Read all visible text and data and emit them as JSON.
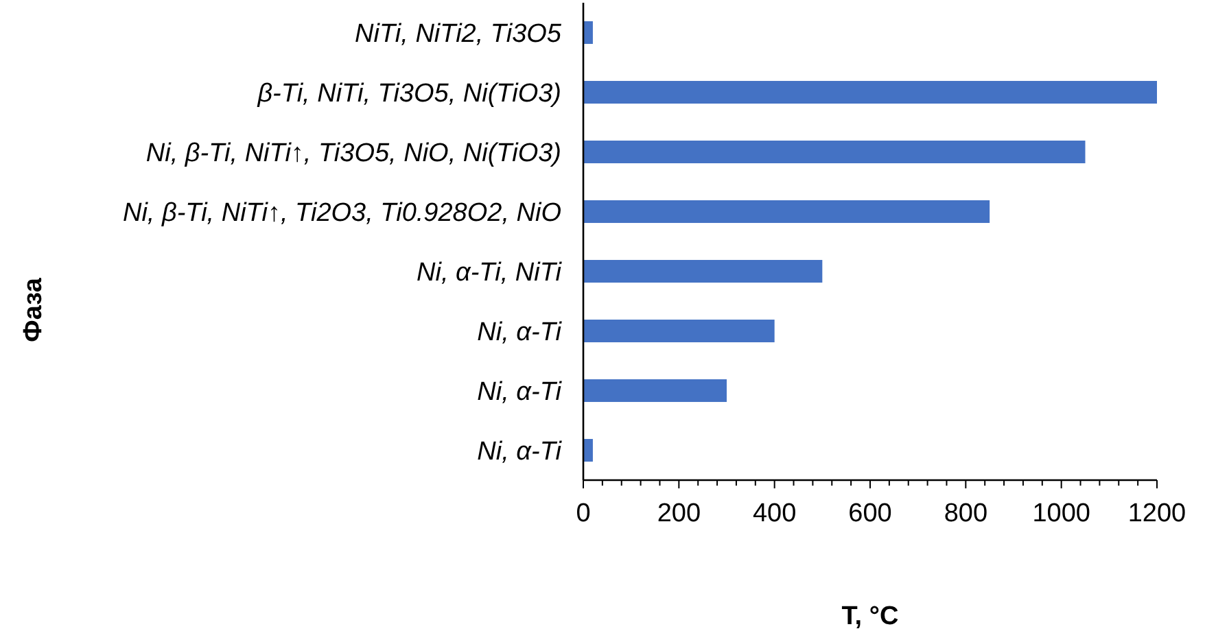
{
  "chart_data": {
    "type": "bar",
    "orientation": "horizontal",
    "xlabel": "T, °C",
    "ylabel": "Фаза",
    "categories": [
      "NiTi, NiTi2, Ti3O5",
      "β-Ti, NiTi, Ti3O5, Ni(TiO3)",
      "Ni, β-Ti, NiTi↑, Ti3O5, NiO, Ni(TiO3)",
      "Ni, β-Ti, NiTi↑, Ti2O3, Ti0.928O2, NiO",
      "Ni, α-Ti, NiTi",
      "Ni, α-Ti",
      "Ni, α-Ti",
      "Ni, α-Ti"
    ],
    "values": [
      20,
      1200,
      1050,
      850,
      500,
      400,
      300,
      20
    ],
    "color": "#4472c4",
    "xlim": [
      0,
      1200
    ],
    "xticks": [
      0,
      {
        "value": 40,
        "label": null
      },
      {
        "value": 80,
        "label": null
      },
      {
        "value": 120,
        "label": null
      },
      {
        "value": 160,
        "label": null
      },
      200,
      {
        "value": 240,
        "label": null
      },
      {
        "value": 280,
        "label": null
      },
      {
        "value": 320,
        "label": null
      },
      {
        "value": 360,
        "label": null
      },
      400,
      {
        "value": 440,
        "label": null
      },
      {
        "value": 480,
        "label": null
      },
      {
        "value": 520,
        "label": null
      },
      {
        "value": 560,
        "label": null
      },
      600,
      {
        "value": 640,
        "label": null
      },
      {
        "value": 680,
        "label": null
      },
      {
        "value": 720,
        "label": null
      },
      {
        "value": 760,
        "label": null
      },
      800,
      {
        "value": 840,
        "label": null
      },
      {
        "value": 880,
        "label": null
      },
      {
        "value": 920,
        "label": null
      },
      {
        "value": 960,
        "label": null
      },
      1000,
      {
        "value": 1040,
        "label": null
      },
      {
        "value": 1080,
        "label": null
      },
      {
        "value": 1120,
        "label": null
      },
      {
        "value": 1160,
        "label": null
      },
      1200
    ],
    "grid": false
  }
}
